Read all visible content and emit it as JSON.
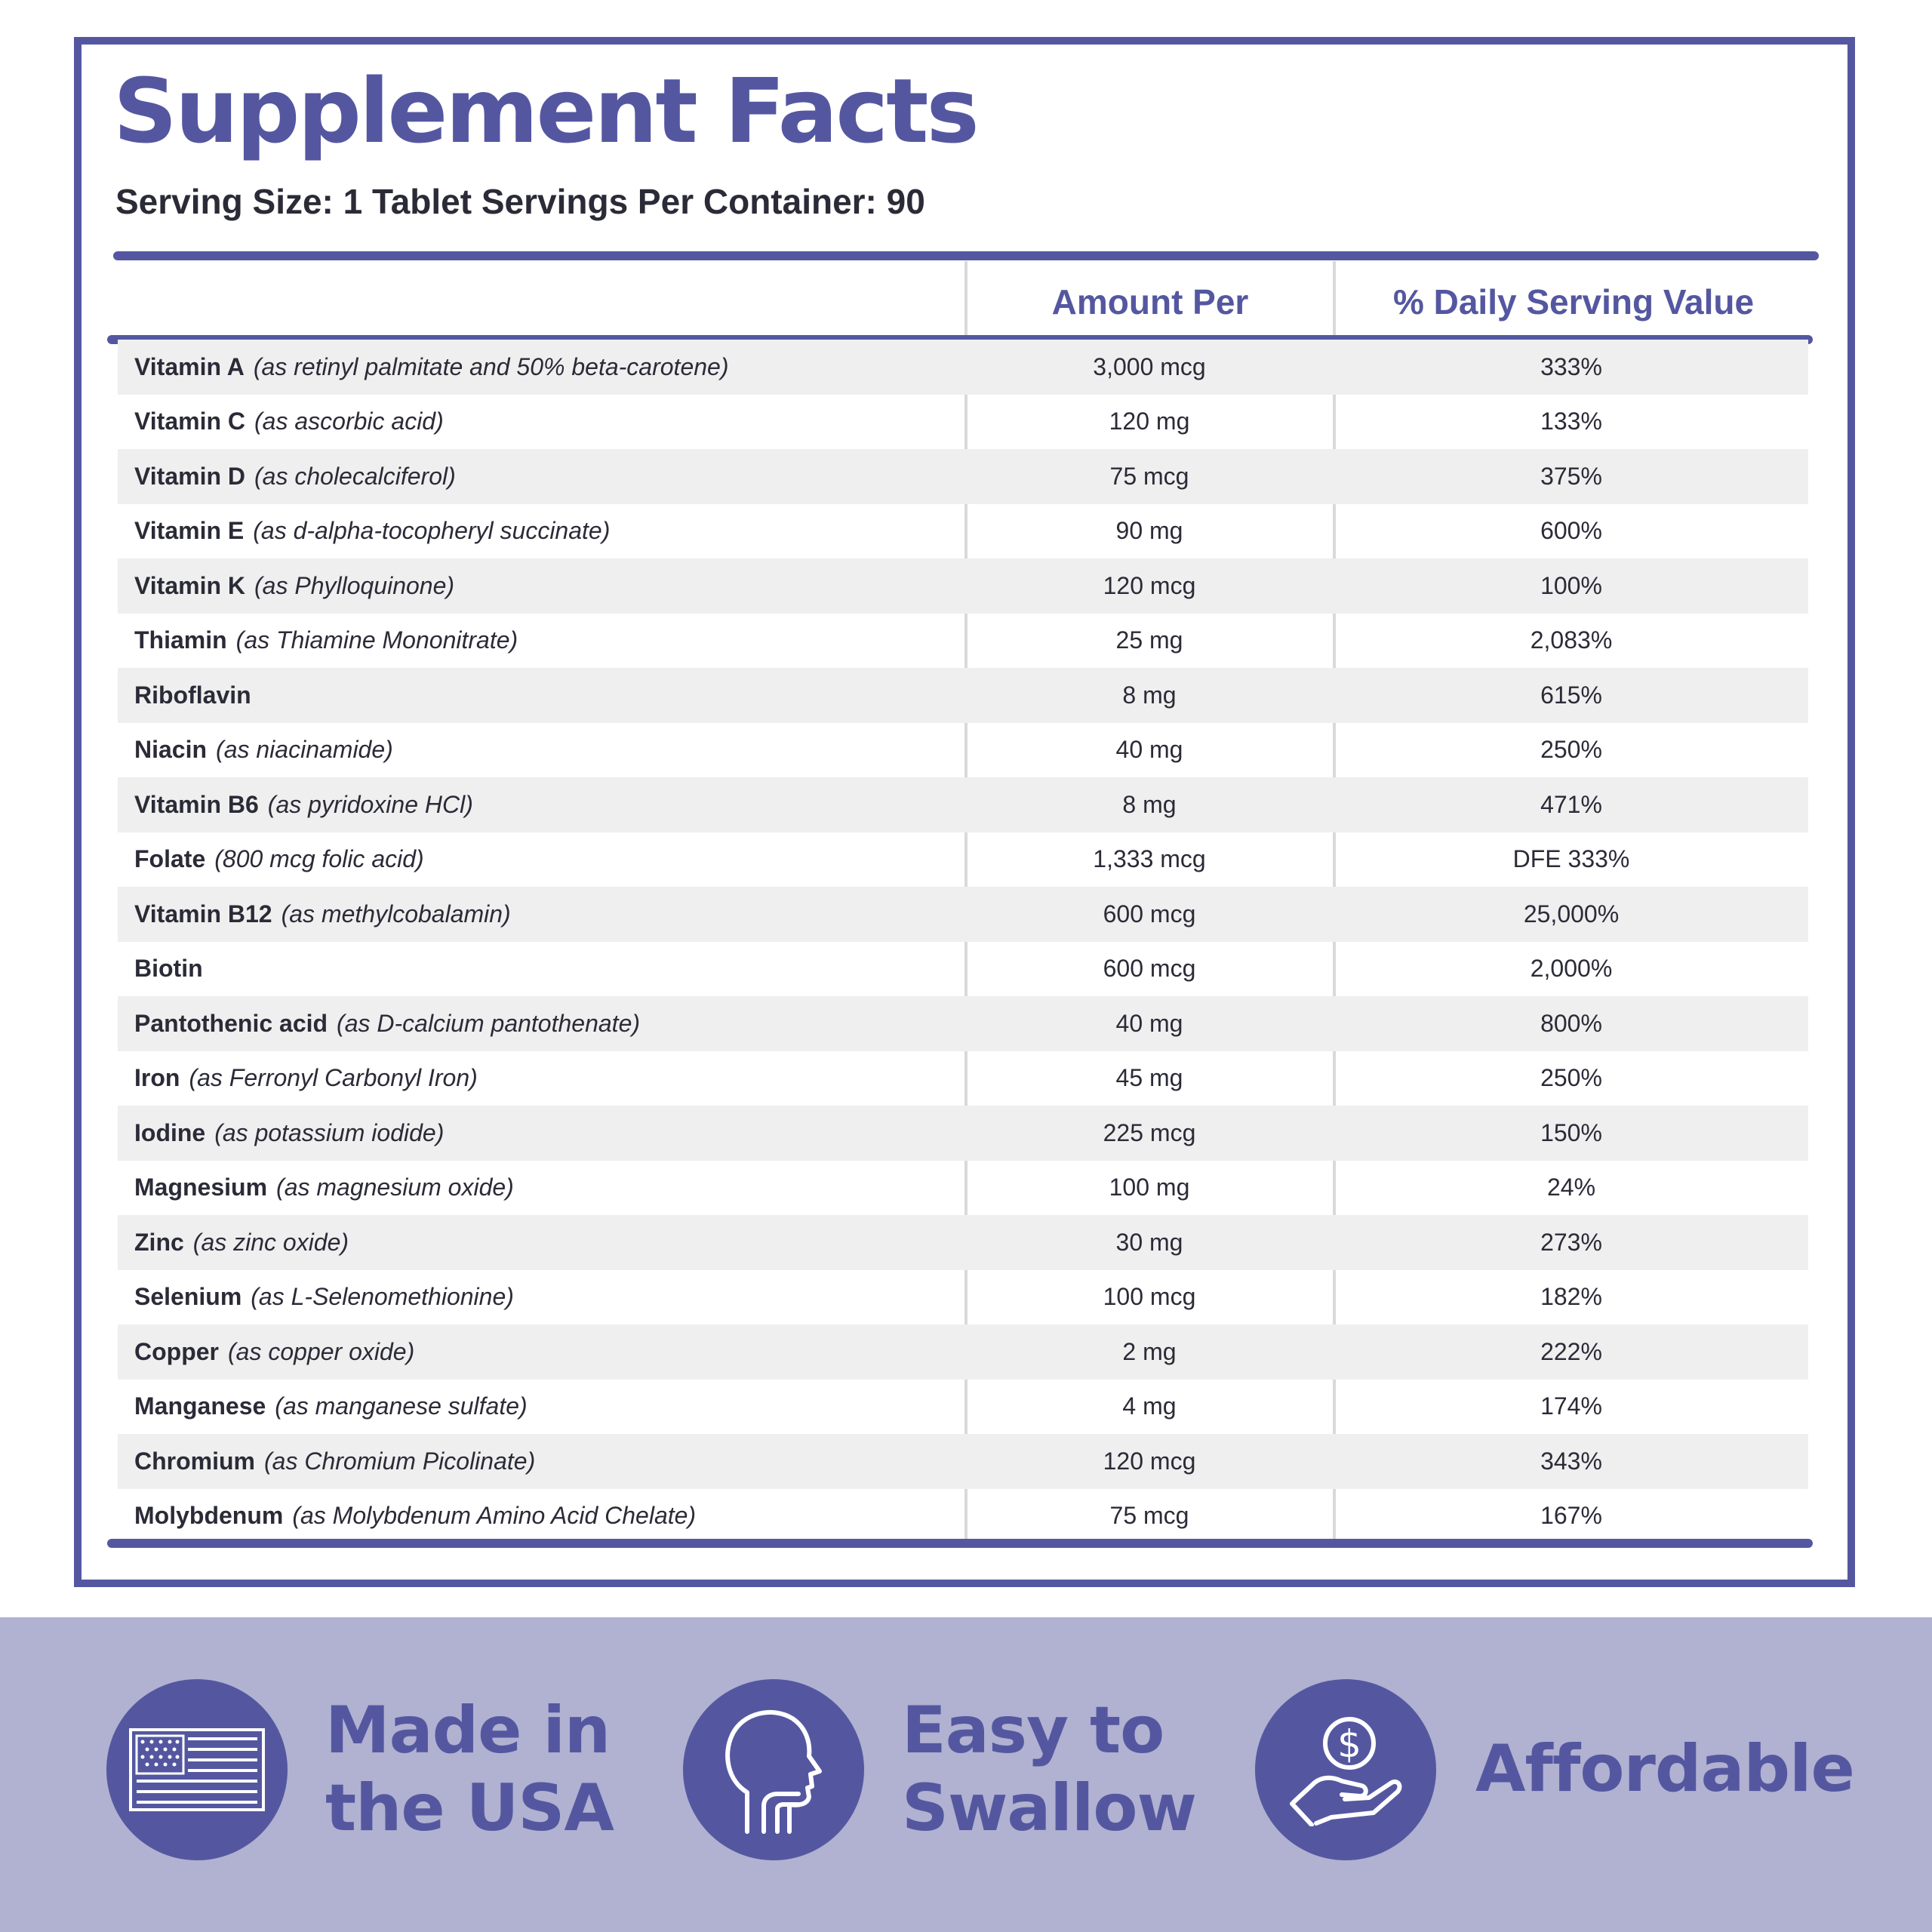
{
  "facts": {
    "title": "Supplement Facts",
    "serving": "Serving Size: 1 Tablet Servings Per Container: 90",
    "columns": {
      "amount": "Amount Per",
      "dv": "% Daily Serving Value"
    },
    "rows": [
      {
        "nutrient": "Vitamin A",
        "source": "(as retinyl palmitate and 50% beta-carotene)",
        "amount": "3,000 mcg",
        "dv": "333%"
      },
      {
        "nutrient": "Vitamin C",
        "source": "(as ascorbic acid)",
        "amount": "120 mg",
        "dv": "133%"
      },
      {
        "nutrient": "Vitamin D",
        "source": "(as cholecalciferol)",
        "amount": "75 mcg",
        "dv": "375%"
      },
      {
        "nutrient": "Vitamin E",
        "source": "(as d-alpha-tocopheryl succinate)",
        "amount": "90 mg",
        "dv": "600%"
      },
      {
        "nutrient": "Vitamin K",
        "source": "(as Phylloquinone)",
        "amount": "120 mcg",
        "dv": "100%"
      },
      {
        "nutrient": "Thiamin",
        "source": "(as Thiamine Mononitrate)",
        "amount": "25 mg",
        "dv": "2,083%"
      },
      {
        "nutrient": "Riboflavin",
        "source": "",
        "amount": "8 mg",
        "dv": "615%"
      },
      {
        "nutrient": "Niacin",
        "source": "(as niacinamide)",
        "amount": "40 mg",
        "dv": "250%"
      },
      {
        "nutrient": "Vitamin B6",
        "source": "(as pyridoxine HCl)",
        "amount": "8 mg",
        "dv": "471%"
      },
      {
        "nutrient": "Folate",
        "source": "(800 mcg folic acid)",
        "amount": "1,333 mcg",
        "dv": "DFE 333%"
      },
      {
        "nutrient": "Vitamin B12",
        "source": "(as methylcobalamin)",
        "amount": "600 mcg",
        "dv": "25,000%"
      },
      {
        "nutrient": "Biotin",
        "source": "",
        "amount": "600 mcg",
        "dv": "2,000%"
      },
      {
        "nutrient": "Pantothenic acid",
        "source": "(as D-calcium pantothenate)",
        "amount": "40 mg",
        "dv": "800%"
      },
      {
        "nutrient": "Iron",
        "source": "(as Ferronyl Carbonyl Iron)",
        "amount": "45 mg",
        "dv": "250%"
      },
      {
        "nutrient": "Iodine",
        "source": "(as potassium iodide)",
        "amount": "225 mcg",
        "dv": "150%"
      },
      {
        "nutrient": "Magnesium",
        "source": "(as magnesium oxide)",
        "amount": "100 mg",
        "dv": "24%"
      },
      {
        "nutrient": "Zinc",
        "source": "(as zinc oxide)",
        "amount": "30 mg",
        "dv": "273%"
      },
      {
        "nutrient": "Selenium",
        "source": "(as L-Selenomethionine)",
        "amount": "100 mcg",
        "dv": "182%"
      },
      {
        "nutrient": "Copper",
        "source": "(as copper oxide)",
        "amount": "2 mg",
        "dv": "222%"
      },
      {
        "nutrient": "Manganese",
        "source": "(as manganese sulfate)",
        "amount": "4 mg",
        "dv": "174%"
      },
      {
        "nutrient": "Chromium",
        "source": "(as Chromium Picolinate)",
        "amount": "120 mcg",
        "dv": "343%"
      },
      {
        "nutrient": "Molybdenum",
        "source": "(as Molybdenum Amino Acid Chelate)",
        "amount": "75 mcg",
        "dv": "167%"
      }
    ]
  },
  "features": [
    {
      "icon": "us-flag-icon",
      "line1": "Made in",
      "line2": "the USA"
    },
    {
      "icon": "head-throat-icon",
      "line1": "Easy to",
      "line2": "Swallow"
    },
    {
      "icon": "hand-dollar-icon",
      "line1": "Affordable",
      "line2": ""
    }
  ],
  "colors": {
    "brand": "#5457a0",
    "band": "#b1b1d1",
    "row_shade": "#efefef",
    "divider": "#d9d9d9",
    "text": "#2b2b38"
  }
}
